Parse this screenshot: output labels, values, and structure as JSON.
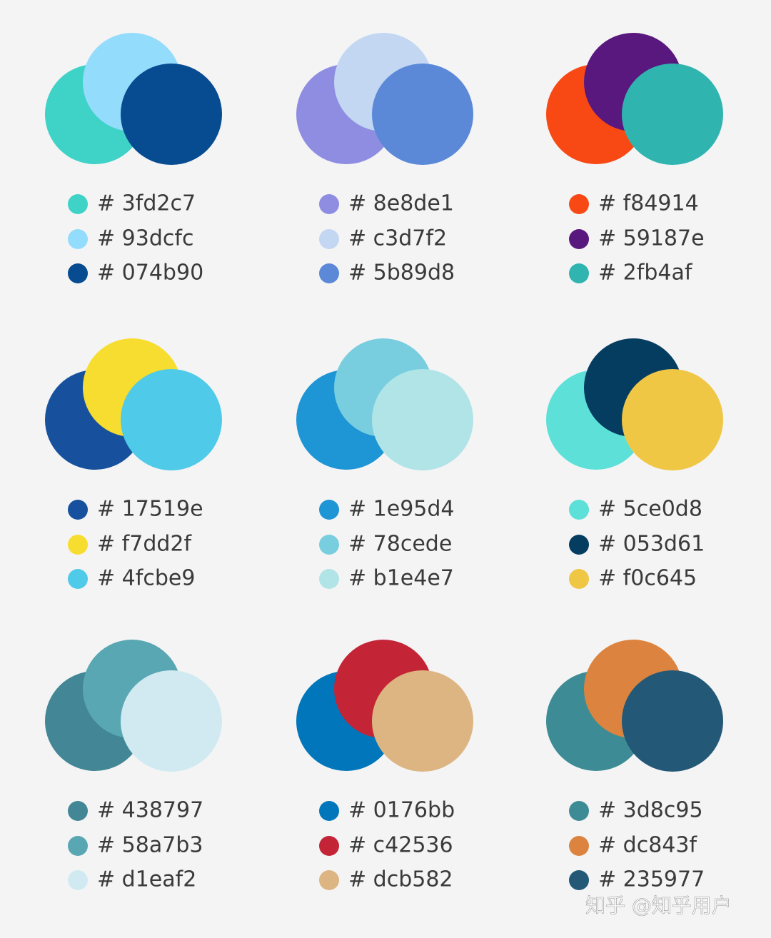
{
  "palettes": [
    {
      "colors": [
        {
          "label": "# 3fd2c7",
          "color": "#3fd2c7"
        },
        {
          "label": "# 93dcfc",
          "color": "#93dcfc"
        },
        {
          "label": "# 074b90",
          "color": "#074b90"
        }
      ]
    },
    {
      "colors": [
        {
          "label": "# 8e8de1",
          "color": "#8e8de1"
        },
        {
          "label": "# c3d7f2",
          "color": "#c3d7f2"
        },
        {
          "label": "# 5b89d8",
          "color": "#5b89d8"
        }
      ]
    },
    {
      "colors": [
        {
          "label": "# f84914",
          "color": "#f84914"
        },
        {
          "label": "# 59187e",
          "color": "#59187e"
        },
        {
          "label": "# 2fb4af",
          "color": "#2fb4af"
        }
      ]
    },
    {
      "colors": [
        {
          "label": "# 17519e",
          "color": "#17519e"
        },
        {
          "label": "# f7dd2f",
          "color": "#f7dd2f"
        },
        {
          "label": "# 4fcbe9",
          "color": "#4fcbe9"
        }
      ]
    },
    {
      "colors": [
        {
          "label": "# 1e95d4",
          "color": "#1e95d4"
        },
        {
          "label": "# 78cede",
          "color": "#78cede"
        },
        {
          "label": "# b1e4e7",
          "color": "#b1e4e7"
        }
      ]
    },
    {
      "colors": [
        {
          "label": "# 5ce0d8",
          "color": "#5ce0d8"
        },
        {
          "label": "# 053d61",
          "color": "#053d61"
        },
        {
          "label": "# f0c645",
          "color": "#f0c645"
        }
      ]
    },
    {
      "colors": [
        {
          "label": "# 438797",
          "color": "#438797"
        },
        {
          "label": "# 58a7b3",
          "color": "#58a7b3"
        },
        {
          "label": "# d1eaf2",
          "color": "#d1eaf2"
        }
      ]
    },
    {
      "colors": [
        {
          "label": "# 0176bb",
          "color": "#0176bb"
        },
        {
          "label": "# c42536",
          "color": "#c42536"
        },
        {
          "label": "# dcb582",
          "color": "#dcb582"
        }
      ]
    },
    {
      "colors": [
        {
          "label": "# 3d8c95",
          "color": "#3d8c95"
        },
        {
          "label": "# dc843f",
          "color": "#dc843f"
        },
        {
          "label": "# 235977",
          "color": "#235977"
        }
      ]
    }
  ],
  "watermark": "知乎 @知乎用户"
}
